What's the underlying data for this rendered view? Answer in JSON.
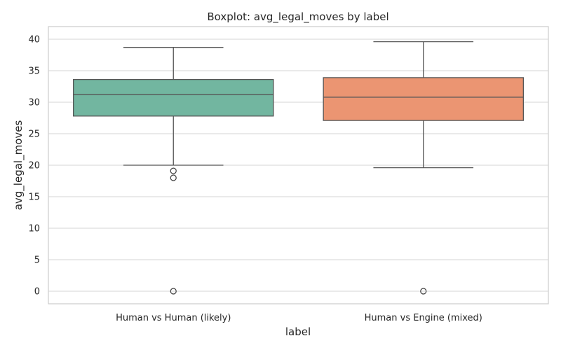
{
  "chart_data": {
    "type": "box",
    "title": "Boxplot: avg_legal_moves by label",
    "xlabel": "label",
    "ylabel": "avg_legal_moves",
    "ylim": [
      -2,
      42
    ],
    "yticks": [
      0,
      5,
      10,
      15,
      20,
      25,
      30,
      35,
      40
    ],
    "grid": true,
    "categories": [
      "Human vs Human (likely)",
      "Human vs Engine (mixed)"
    ],
    "colors": [
      "#72b6a0",
      "#eb9572"
    ],
    "edge_color": "#555555",
    "boxes": [
      {
        "whisker_low": 20.0,
        "q1": 27.8,
        "median": 31.2,
        "q3": 33.6,
        "whisker_high": 38.7,
        "outliers": [
          19.1,
          18.0,
          0.0
        ]
      },
      {
        "whisker_low": 19.6,
        "q1": 27.1,
        "median": 30.8,
        "q3": 33.9,
        "whisker_high": 39.6,
        "outliers": [
          0.0
        ]
      }
    ]
  }
}
